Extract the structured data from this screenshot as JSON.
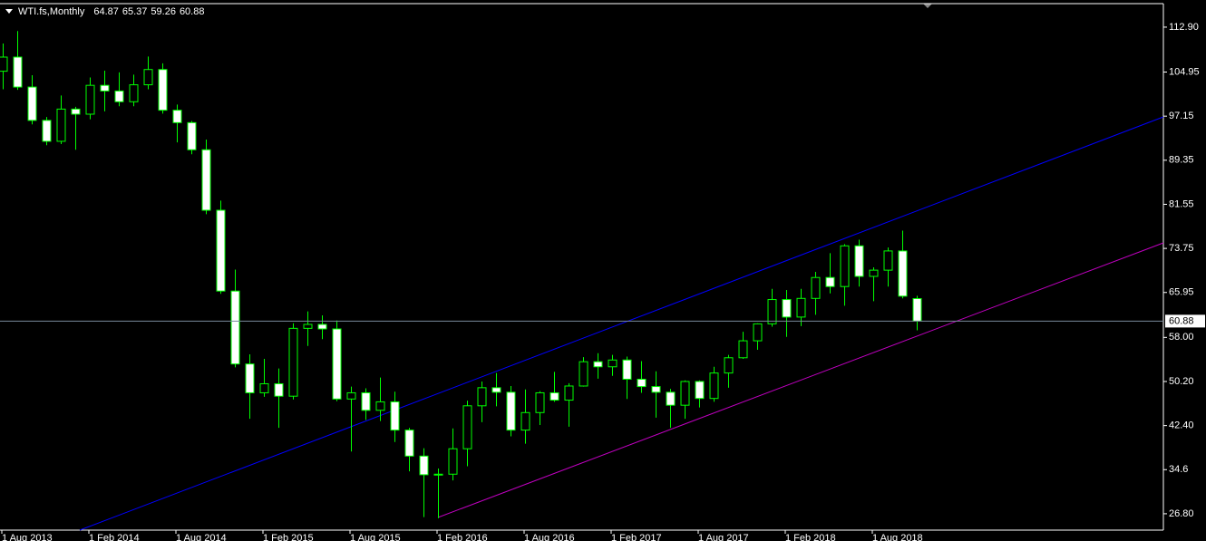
{
  "chart_data": {
    "type": "candlestick",
    "title": "WTI.fs,Monthly",
    "categories": [
      "1 Aug 2013",
      null,
      null,
      null,
      null,
      null,
      "1 Feb 2014",
      null,
      null,
      null,
      null,
      null,
      "1 Aug 2014",
      null,
      null,
      null,
      null,
      null,
      "1 Feb 2015",
      null,
      null,
      null,
      null,
      null,
      "1 Aug 2015",
      null,
      null,
      null,
      null,
      null,
      "1 Feb 2016",
      null,
      null,
      null,
      null,
      null,
      "1 Aug 2016",
      null,
      null,
      null,
      null,
      null,
      "1 Feb 2017",
      null,
      null,
      null,
      null,
      null,
      "1 Aug 2017",
      null,
      null,
      null,
      null,
      null,
      "1 Feb 2018",
      null,
      null,
      null,
      null,
      null,
      "1 Aug 2018",
      null,
      null,
      null
    ],
    "open": [
      105.1,
      107.6,
      102.3,
      96.4,
      92.7,
      98.4,
      97.5,
      102.6,
      101.6,
      99.7,
      102.7,
      105.4,
      98.2,
      96.0,
      91.2,
      80.5,
      66.2,
      53.3,
      48.2,
      49.8,
      47.6,
      59.6,
      60.3,
      59.5,
      47.1,
      48.2,
      45.1,
      46.6,
      41.6,
      37.0,
      33.7,
      33.8,
      38.3,
      45.9,
      49.1,
      48.3,
      41.6,
      44.7,
      48.2,
      46.9,
      49.4,
      53.7,
      52.8,
      54.0,
      50.6,
      49.3,
      48.3,
      46.0,
      50.2,
      47.2,
      51.7,
      54.4,
      57.4,
      60.4,
      64.7,
      61.6,
      64.9,
      68.6,
      67.0,
      74.2,
      68.8,
      69.9,
      73.3,
      64.87
    ],
    "high": [
      110.0,
      112.2,
      104.4,
      97.0,
      100.8,
      98.8,
      104.0,
      105.2,
      104.9,
      104.5,
      107.7,
      106.5,
      99.2,
      96.3,
      93.0,
      82.2,
      70.0,
      55.0,
      54.2,
      52.5,
      60.5,
      62.6,
      61.9,
      61.0,
      49.3,
      49.0,
      50.9,
      48.4,
      42.0,
      38.4,
      34.8,
      41.9,
      46.8,
      50.2,
      51.7,
      49.4,
      48.8,
      48.5,
      51.9,
      49.9,
      54.5,
      55.2,
      54.9,
      54.6,
      53.8,
      52.0,
      48.9,
      50.4,
      50.4,
      52.8,
      54.9,
      59.0,
      60.5,
      66.6,
      66.4,
      66.6,
      69.6,
      72.9,
      74.5,
      75.3,
      70.4,
      73.9,
      76.9,
      65.37
    ],
    "low": [
      101.9,
      101.8,
      95.7,
      92.0,
      92.2,
      91.2,
      96.6,
      98.0,
      98.9,
      98.9,
      101.9,
      97.6,
      92.5,
      90.4,
      79.8,
      65.7,
      52.7,
      43.6,
      47.5,
      42.0,
      47.0,
      56.5,
      57.7,
      46.7,
      37.8,
      43.4,
      43.2,
      39.5,
      34.3,
      26.2,
      26.0,
      32.7,
      35.2,
      43.0,
      45.8,
      40.5,
      39.2,
      42.5,
      46.6,
      42.2,
      49.3,
      50.7,
      51.2,
      47.1,
      48.2,
      43.8,
      42.0,
      43.6,
      45.6,
      46.6,
      49.1,
      54.2,
      55.8,
      59.9,
      58.1,
      60.0,
      62.0,
      65.8,
      63.6,
      67.0,
      64.4,
      67.0,
      64.9,
      59.26
    ],
    "close": [
      107.6,
      102.3,
      96.4,
      92.7,
      98.4,
      97.5,
      102.6,
      101.6,
      99.7,
      102.7,
      105.4,
      98.2,
      96.0,
      91.2,
      80.5,
      66.2,
      53.3,
      48.2,
      49.8,
      47.6,
      59.6,
      60.3,
      59.5,
      47.1,
      48.2,
      45.1,
      46.6,
      41.6,
      37.0,
      33.7,
      33.8,
      38.3,
      45.9,
      49.1,
      48.3,
      41.6,
      44.7,
      48.2,
      46.9,
      49.4,
      53.7,
      52.8,
      54.0,
      50.6,
      49.3,
      48.3,
      46.0,
      50.2,
      47.2,
      51.7,
      54.4,
      57.4,
      60.4,
      64.7,
      61.6,
      64.9,
      68.6,
      67.0,
      74.2,
      68.8,
      69.9,
      73.3,
      65.3,
      60.88
    ],
    "up_color": "#000000",
    "down_color": "#ffffff",
    "wick_color": "#00ff00",
    "current_price_color": "#778899",
    "ylim": [
      23.9,
      116.9
    ],
    "yticks": [
      {
        "value": 26.8,
        "label": "26.80"
      },
      34.6,
      {
        "value": 42.4,
        "label": "42.40"
      },
      {
        "value": 50.2,
        "label": "50.20"
      },
      {
        "value": 58,
        "label": "58.00"
      },
      65.95,
      73.75,
      81.55,
      89.35,
      97.15,
      104.95,
      {
        "value": 112.9,
        "label": "112.90"
      }
    ]
  }
}
